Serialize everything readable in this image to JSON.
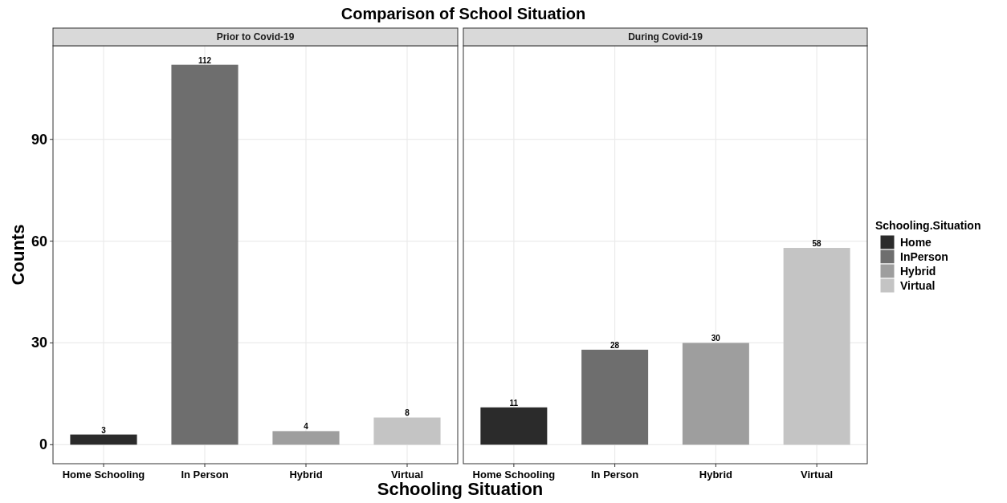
{
  "chart_data": [
    {
      "type": "bar",
      "title": "Comparison of School Situation",
      "subtitle": "Prior to Covid-19",
      "xlabel": "Schooling Situation",
      "ylabel": "Counts",
      "categories": [
        "Home Schooling",
        "In Person",
        "Hybrid",
        "Virtual"
      ],
      "series": [
        {
          "color": "#2b2b2b",
          "values": [
            3,
            null,
            null,
            null
          ]
        },
        {
          "color": "#6e6e6e",
          "values": [
            null,
            112,
            null,
            null
          ]
        },
        {
          "color": "#9e9e9e",
          "values": [
            null,
            null,
            4,
            null
          ]
        },
        {
          "color": "#c4c4c4",
          "values": [
            null,
            null,
            null,
            8
          ]
        }
      ],
      "ylim": [
        -5.6,
        117.6
      ],
      "yticks": [
        0,
        30,
        60,
        90
      ],
      "grid": true,
      "data_labels": true
    },
    {
      "type": "bar",
      "subtitle": "During Covid-19",
      "legend_title": "Schooling.Situation",
      "categories": [
        "Home Schooling",
        "In Person",
        "Hybrid",
        "Virtual"
      ],
      "series": [
        {
          "name": "Home",
          "color": "#2b2b2b",
          "values": [
            11,
            null,
            null,
            null
          ]
        },
        {
          "name": "InPerson",
          "color": "#6e6e6e",
          "values": [
            null,
            28,
            null,
            null
          ]
        },
        {
          "name": "Hybrid",
          "color": "#9e9e9e",
          "values": [
            null,
            null,
            30,
            null
          ]
        },
        {
          "name": "Virtual",
          "color": "#c4c4c4",
          "values": [
            null,
            null,
            null,
            58
          ]
        }
      ],
      "ylim": [
        -5.6,
        117.6
      ],
      "yticks": [
        0,
        30,
        60,
        90
      ],
      "grid": true,
      "data_labels": true,
      "legend": "right",
      "tick_labels": "x"
    }
  ]
}
